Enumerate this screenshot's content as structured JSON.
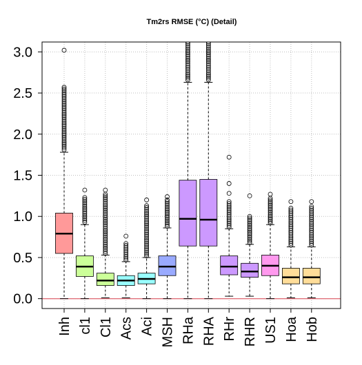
{
  "chart_data": {
    "type": "box",
    "title": "Tm2rs RMSE (°C) (Detail)",
    "xlabel": "",
    "ylabel": "",
    "ylim": [
      -0.12,
      3.12
    ],
    "grid": true,
    "yticks": [
      "0.0",
      "0.5",
      "1.0",
      "1.5",
      "2.0",
      "2.5",
      "3.0"
    ],
    "ytick_values": [
      0,
      0.5,
      1.0,
      1.5,
      2.0,
      2.5,
      3.0
    ],
    "reference_line": {
      "y": 0,
      "color": "#e0707a"
    },
    "categories": [
      "Inh",
      "cl1",
      "Cl1",
      "Acs",
      "Aci",
      "MSH",
      "RHa",
      "RHA",
      "RHr",
      "RHR",
      "US1",
      "Hoa",
      "Hob"
    ],
    "colors": [
      "#ff9999",
      "#ccff99",
      "#ccff99",
      "#99ffff",
      "#99ffff",
      "#99aaff",
      "#cc99ff",
      "#cc99ff",
      "#cc99ff",
      "#cc99ff",
      "#ff99ee",
      "#ffdd99",
      "#ffdd99"
    ],
    "boxes": [
      {
        "min": 0.0,
        "q1": 0.55,
        "median": 0.79,
        "q3": 1.04,
        "whisker_high": 1.78,
        "outlier_low": 1.81,
        "outlier_high": 2.57,
        "outliers_extra": [
          3.02
        ]
      },
      {
        "min": 0.0,
        "q1": 0.27,
        "median": 0.39,
        "q3": 0.52,
        "whisker_high": 0.9,
        "outlier_low": 0.93,
        "outlier_high": 1.23,
        "outliers_extra": [
          1.32
        ]
      },
      {
        "min": 0.01,
        "q1": 0.16,
        "median": 0.22,
        "q3": 0.31,
        "whisker_high": 0.53,
        "outlier_low": 0.55,
        "outlier_high": 1.27,
        "outliers_extra": [
          1.32
        ]
      },
      {
        "min": 0.01,
        "q1": 0.16,
        "median": 0.22,
        "q3": 0.28,
        "whisker_high": 0.45,
        "outlier_low": 0.47,
        "outlier_high": 0.67,
        "outliers_extra": [
          0.76
        ]
      },
      {
        "min": 0.0,
        "q1": 0.18,
        "median": 0.24,
        "q3": 0.31,
        "whisker_high": 0.5,
        "outlier_low": 0.52,
        "outlier_high": 1.13,
        "outliers_extra": [
          1.2
        ]
      },
      {
        "min": 0.0,
        "q1": 0.28,
        "median": 0.39,
        "q3": 0.52,
        "whisker_high": 0.86,
        "outlier_low": 0.88,
        "outlier_high": 1.2,
        "outliers_extra": [
          1.24
        ]
      },
      {
        "min": 0.0,
        "q1": 0.64,
        "median": 0.97,
        "q3": 1.44,
        "whisker_high": 2.63,
        "outlier_low": 2.66,
        "outlier_high": 3.12,
        "outliers_extra": []
      },
      {
        "min": 0.0,
        "q1": 0.64,
        "median": 0.96,
        "q3": 1.45,
        "whisker_high": 2.63,
        "outlier_low": 2.66,
        "outlier_high": 3.12,
        "outliers_extra": []
      },
      {
        "min": 0.03,
        "q1": 0.29,
        "median": 0.39,
        "q3": 0.52,
        "whisker_high": 0.85,
        "outlier_low": 0.87,
        "outlier_high": 1.18,
        "outliers_extra": [
          1.28,
          1.4,
          1.72
        ]
      },
      {
        "min": 0.03,
        "q1": 0.26,
        "median": 0.33,
        "q3": 0.43,
        "whisker_high": 0.66,
        "outlier_low": 0.68,
        "outlier_high": 1.0,
        "outliers_extra": [
          1.25
        ]
      },
      {
        "min": 0.0,
        "q1": 0.28,
        "median": 0.4,
        "q3": 0.53,
        "whisker_high": 0.9,
        "outlier_low": 0.92,
        "outlier_high": 1.22,
        "outliers_extra": [
          1.27
        ]
      },
      {
        "min": 0.01,
        "q1": 0.18,
        "median": 0.26,
        "q3": 0.37,
        "whisker_high": 0.63,
        "outlier_low": 0.65,
        "outlier_high": 1.1,
        "outliers_extra": [
          1.18
        ]
      },
      {
        "min": 0.01,
        "q1": 0.18,
        "median": 0.26,
        "q3": 0.37,
        "whisker_high": 0.63,
        "outlier_low": 0.65,
        "outlier_high": 1.12,
        "outliers_extra": [
          1.18
        ]
      }
    ]
  }
}
